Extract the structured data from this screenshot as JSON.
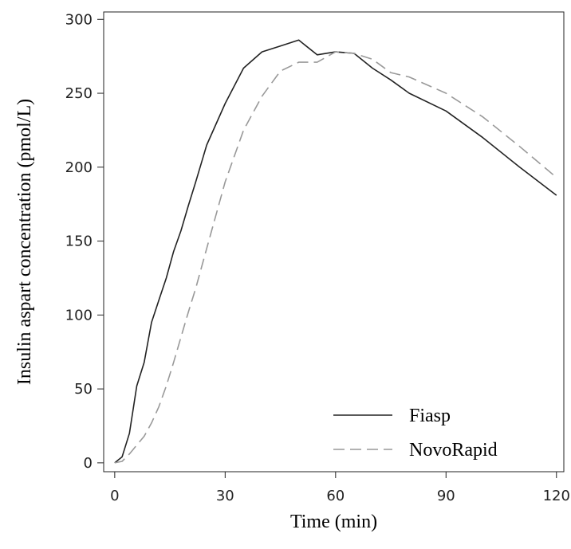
{
  "chart_data": {
    "type": "line",
    "xlabel": "Time (min)",
    "ylabel": "Insulin aspart concentration (pmol/L)",
    "xlim": [
      -3,
      122
    ],
    "ylim": [
      -6,
      305
    ],
    "xticks": [
      0,
      30,
      60,
      90,
      120
    ],
    "yticks": [
      0,
      50,
      100,
      150,
      200,
      250,
      300
    ],
    "grid": false,
    "legend_position": "bottom-right",
    "series": [
      {
        "name": "Fiasp",
        "style": "solid",
        "color": "#222222",
        "x": [
          0,
          2,
          4,
          6,
          8,
          10,
          12,
          14,
          16,
          18,
          20,
          22,
          25,
          30,
          35,
          40,
          45,
          50,
          55,
          60,
          65,
          70,
          75,
          80,
          90,
          100,
          110,
          120
        ],
        "y": [
          0,
          4,
          20,
          52,
          68,
          95,
          110,
          125,
          143,
          157,
          174,
          190,
          215,
          243,
          267,
          278,
          282,
          286,
          276,
          278,
          277,
          267,
          259,
          250,
          238,
          220,
          200,
          181
        ]
      },
      {
        "name": "NovoRapid",
        "style": "dashed",
        "color": "#999999",
        "x": [
          0,
          2,
          4,
          6,
          8,
          10,
          12,
          14,
          16,
          18,
          20,
          22,
          25,
          30,
          35,
          40,
          45,
          50,
          55,
          60,
          65,
          70,
          75,
          80,
          90,
          100,
          110,
          120
        ],
        "y": [
          0,
          1,
          6,
          12,
          18,
          27,
          38,
          52,
          68,
          85,
          102,
          118,
          145,
          190,
          225,
          248,
          265,
          271,
          271,
          278,
          277,
          273,
          264,
          261,
          250,
          234,
          214,
          193
        ]
      }
    ]
  }
}
